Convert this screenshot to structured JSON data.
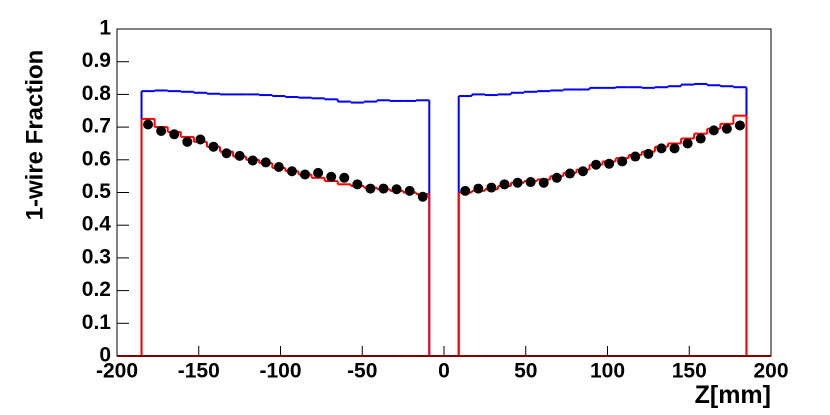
{
  "chart_data": {
    "type": "histogram",
    "xlabel": "Z[mm]",
    "ylabel": "1-wire Fraction",
    "xlim": [
      -200,
      200
    ],
    "ylim": [
      0,
      1
    ],
    "xticks": [
      -200,
      -150,
      -100,
      -50,
      0,
      50,
      100,
      150,
      200
    ],
    "yticks": [
      0,
      0.1,
      0.2,
      0.3,
      0.4,
      0.5,
      0.6,
      0.7,
      0.8,
      0.9,
      1
    ],
    "series": [
      {
        "style": "step",
        "color": "#0000ff",
        "bins": [
          -185,
          -177,
          -169,
          -161,
          -153,
          -145,
          -137,
          -129,
          -121,
          -113,
          -105,
          -97,
          -89,
          -81,
          -73,
          -65,
          -57,
          -49,
          -41,
          -33,
          -25,
          -17,
          -9
        ],
        "values": [
          0.81,
          0.812,
          0.81,
          0.808,
          0.805,
          0.802,
          0.8,
          0.8,
          0.8,
          0.798,
          0.795,
          0.792,
          0.79,
          0.788,
          0.785,
          0.778,
          0.775,
          0.778,
          0.782,
          0.78,
          0.78,
          0.782
        ]
      },
      {
        "style": "step",
        "color": "#0000ff",
        "bins": [
          9,
          17,
          25,
          33,
          41,
          49,
          57,
          65,
          73,
          81,
          89,
          97,
          105,
          113,
          121,
          129,
          137,
          145,
          153,
          161,
          169,
          177,
          185
        ],
        "values": [
          0.795,
          0.8,
          0.798,
          0.8,
          0.805,
          0.808,
          0.81,
          0.812,
          0.815,
          0.815,
          0.82,
          0.82,
          0.822,
          0.822,
          0.82,
          0.822,
          0.825,
          0.83,
          0.832,
          0.828,
          0.825,
          0.822
        ]
      },
      {
        "style": "step",
        "color": "#ff0000",
        "bins": [
          -185,
          -177,
          -169,
          -161,
          -153,
          -145,
          -137,
          -129,
          -121,
          -113,
          -105,
          -97,
          -89,
          -81,
          -73,
          -65,
          -57,
          -49,
          -41,
          -33,
          -25,
          -17,
          -9
        ],
        "values": [
          0.725,
          0.7,
          0.685,
          0.67,
          0.655,
          0.64,
          0.625,
          0.61,
          0.6,
          0.59,
          0.575,
          0.565,
          0.555,
          0.545,
          0.535,
          0.525,
          0.52,
          0.515,
          0.51,
          0.505,
          0.5,
          0.495
        ]
      },
      {
        "style": "step",
        "color": "#ff0000",
        "bins": [
          9,
          17,
          25,
          33,
          41,
          49,
          57,
          65,
          73,
          81,
          89,
          97,
          105,
          113,
          121,
          129,
          137,
          145,
          153,
          161,
          169,
          177,
          185
        ],
        "values": [
          0.5,
          0.505,
          0.51,
          0.52,
          0.53,
          0.535,
          0.54,
          0.55,
          0.56,
          0.57,
          0.585,
          0.595,
          0.605,
          0.615,
          0.625,
          0.64,
          0.65,
          0.665,
          0.68,
          0.695,
          0.71,
          0.735
        ]
      },
      {
        "style": "points",
        "color": "#000000",
        "x": [
          -181,
          -173,
          -165,
          -157,
          -149,
          -141,
          -133,
          -125,
          -117,
          -109,
          -101,
          -93,
          -85,
          -77,
          -69,
          -61,
          -53,
          -45,
          -37,
          -29,
          -21,
          -13
        ],
        "values": [
          0.708,
          0.688,
          0.678,
          0.655,
          0.662,
          0.64,
          0.62,
          0.612,
          0.598,
          0.592,
          0.578,
          0.565,
          0.555,
          0.56,
          0.548,
          0.545,
          0.525,
          0.512,
          0.512,
          0.51,
          0.505,
          0.487
        ]
      },
      {
        "style": "points",
        "color": "#000000",
        "x": [
          13,
          21,
          29,
          37,
          45,
          53,
          61,
          69,
          77,
          85,
          93,
          101,
          109,
          117,
          125,
          133,
          141,
          149,
          157,
          165,
          173,
          181
        ],
        "values": [
          0.505,
          0.512,
          0.515,
          0.525,
          0.53,
          0.532,
          0.53,
          0.545,
          0.558,
          0.565,
          0.585,
          0.588,
          0.595,
          0.61,
          0.618,
          0.635,
          0.635,
          0.65,
          0.665,
          0.69,
          0.695,
          0.705
        ]
      }
    ]
  }
}
